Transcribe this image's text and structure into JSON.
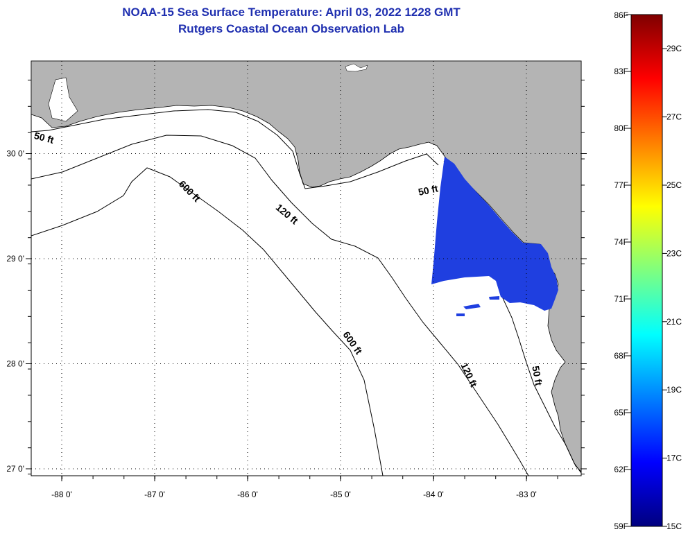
{
  "title": "NOAA-15 Sea Surface Temperature:  April 03, 2022 1228 GMT",
  "subtitle": "Rutgers Coastal Ocean Observation Lab",
  "map": {
    "lon_ticks": [
      {
        "lon": -88,
        "label": "-88 0'"
      },
      {
        "lon": -87,
        "label": "-87 0'"
      },
      {
        "lon": -86,
        "label": "-86 0'"
      },
      {
        "lon": -85,
        "label": "-85 0'"
      },
      {
        "lon": -84,
        "label": "-84 0'"
      },
      {
        "lon": -83,
        "label": "-83 0'"
      }
    ],
    "lat_ticks": [
      {
        "lat": 30,
        "label": "30 0'"
      },
      {
        "lat": 29,
        "label": "29 0'"
      },
      {
        "lat": 28,
        "label": "28 0'"
      },
      {
        "lat": 27,
        "label": "27 0'"
      }
    ],
    "contour_labels": [
      {
        "text": "50 ft",
        "lon": -88.2,
        "lat": 30.12,
        "angle": 15
      },
      {
        "text": "600 ft",
        "lon": -86.65,
        "lat": 29.62,
        "angle": 45
      },
      {
        "text": "120 ft",
        "lon": -85.6,
        "lat": 29.4,
        "angle": 40
      },
      {
        "text": "50 ft",
        "lon": -84.05,
        "lat": 29.62,
        "angle": -12
      },
      {
        "text": "600 ft",
        "lon": -84.9,
        "lat": 28.18,
        "angle": 55
      },
      {
        "text": "120 ft",
        "lon": -83.65,
        "lat": 27.88,
        "angle": 65
      },
      {
        "text": "50 ft",
        "lon": -82.92,
        "lat": 27.88,
        "angle": 80
      }
    ],
    "colors": {
      "land": "#b4b4b4",
      "ocean": "#ffffff",
      "sst_patch": "#1f3fe0"
    }
  },
  "colorbar": {
    "colors": [
      "#00007f",
      "#0000ff",
      "#007fff",
      "#00ffff",
      "#7fff7f",
      "#ffff00",
      "#ff7f00",
      "#ff0000",
      "#7f0000"
    ],
    "fahrenheit": [
      "86F",
      "83F",
      "80F",
      "77F",
      "74F",
      "71F",
      "68F",
      "65F",
      "62F",
      "59F"
    ],
    "celsius": [
      "29C",
      "27C",
      "25C",
      "23C",
      "21C",
      "19C",
      "17C",
      "15C"
    ]
  }
}
